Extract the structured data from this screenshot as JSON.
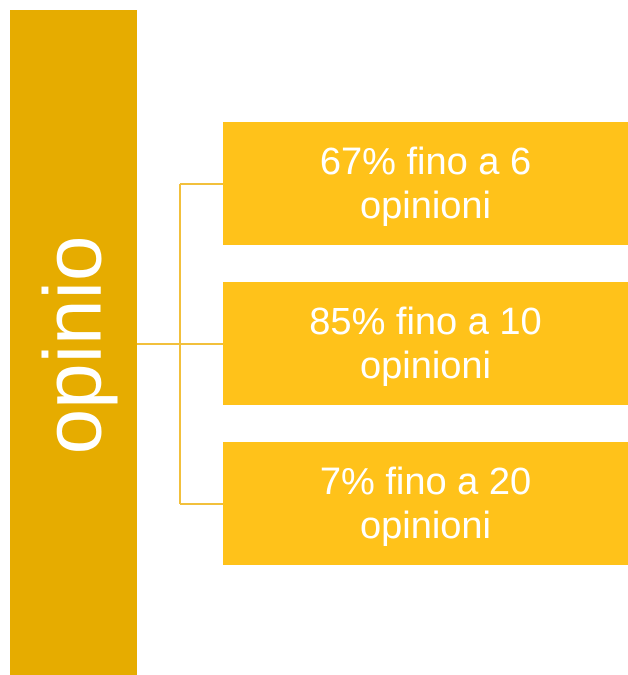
{
  "sidebar": {
    "label": "opinio"
  },
  "items": [
    {
      "label": "67% fino a 6 opinioni"
    },
    {
      "label": "85% fino a 10 opinioni"
    },
    {
      "label": "7% fino a 20 opinioni"
    }
  ]
}
